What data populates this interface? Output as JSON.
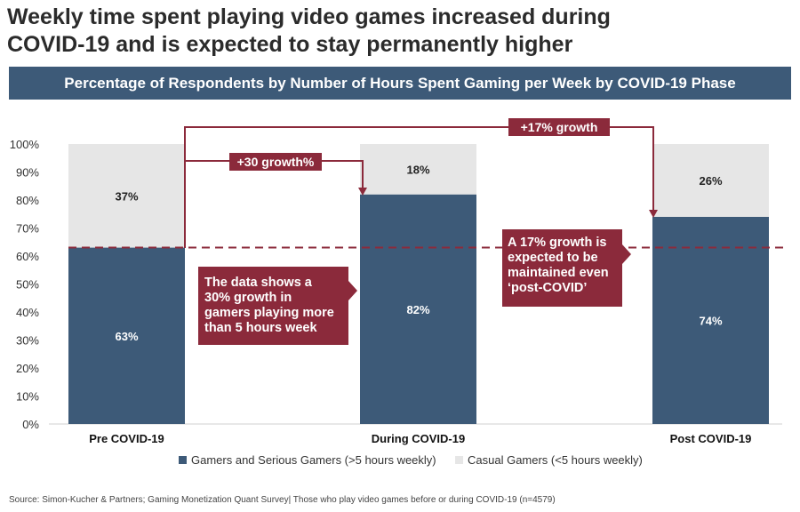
{
  "header": {
    "title_line1": "Weekly time spent playing video games increased during",
    "title_line2": "COVID-19 and is expected to stay permanently higher",
    "banner": "Percentage of Respondents by Number of Hours Spent Gaming per Week by COVID-19 Phase"
  },
  "chart_data": {
    "type": "bar",
    "stacked": true,
    "title": "Percentage of Respondents by Number of Hours Spent Gaming per Week by COVID-19 Phase",
    "categories": [
      "Pre COVID-19",
      "During COVID-19",
      "Post COVID-19"
    ],
    "series": [
      {
        "name": "Gamers and Serious Gamers (>5 hours weekly)",
        "values": [
          63,
          82,
          74
        ],
        "labels": [
          "63%",
          "82%",
          "74%"
        ],
        "color": "#3d5a78"
      },
      {
        "name": "Casual Gamers (<5 hours weekly)",
        "values": [
          37,
          18,
          26
        ],
        "labels": [
          "37%",
          "18%",
          "26%"
        ],
        "color": "#e6e6e6"
      }
    ],
    "yticks": [
      "0%",
      "10%",
      "20%",
      "30%",
      "40%",
      "50%",
      "60%",
      "70%",
      "80%",
      "90%",
      "100%"
    ],
    "ylim": [
      0,
      100
    ],
    "reference_line": {
      "value": 63,
      "style": "dashed",
      "color": "#8b2a3b"
    },
    "legend_position": "bottom",
    "grid": false
  },
  "annotations": {
    "accent_color": "#8b2a3b",
    "growth_during": "+30 growth%",
    "growth_post": "+17% growth",
    "callout_left": [
      "The data shows a",
      "30% growth in",
      "gamers playing more",
      "than 5 hours week"
    ],
    "callout_right": [
      "A 17% growth is",
      "expected to be",
      "maintained even",
      "‘post-COVID’"
    ]
  },
  "footer": {
    "source": "Source: Simon-Kucher & Partners; Gaming Monetization Quant Survey| Those who play video games before or during COVID-19 (n=4579)"
  }
}
